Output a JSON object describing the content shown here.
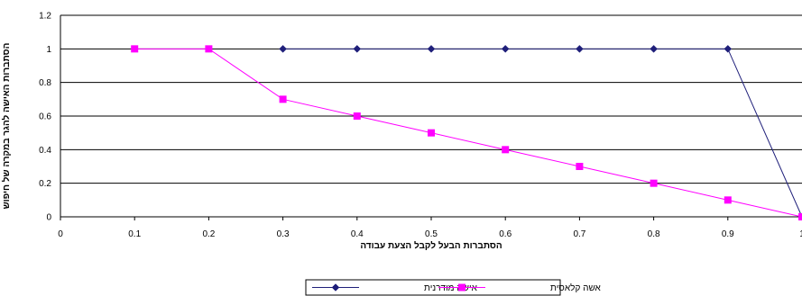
{
  "chart_data": {
    "type": "line",
    "title": "",
    "xlabel": "הסתברות הבעל לקבל הצעת עבודה",
    "ylabel": "הסתברות האישה להגר במקרה של חיפוש",
    "xlim": [
      0,
      1
    ],
    "ylim": [
      0,
      1.2
    ],
    "xticks": [
      "0",
      "0.1",
      "0.2",
      "0.3",
      "0.4",
      "0.5",
      "0.6",
      "0.7",
      "0.8",
      "0.9",
      "1"
    ],
    "yticks": [
      "0",
      "0.2",
      "0.4",
      "0.6",
      "0.8",
      "1",
      "1.2"
    ],
    "grid": "horizontal",
    "legend_position": "bottom",
    "series": [
      {
        "name": "אישה מודרנית",
        "color": "#1f1f7a",
        "marker": "diamond",
        "x": [
          0.3,
          0.4,
          0.5,
          0.6,
          0.7,
          0.8,
          0.9,
          1.0
        ],
        "y": [
          1,
          1,
          1,
          1,
          1,
          1,
          1,
          0
        ]
      },
      {
        "name": "אשה קלאסית",
        "color": "#ff00ff",
        "marker": "square",
        "x": [
          0.1,
          0.2,
          0.3,
          0.4,
          0.5,
          0.6,
          0.7,
          0.8,
          0.9,
          1.0
        ],
        "y": [
          1,
          1,
          0.7,
          0.6,
          0.5,
          0.4,
          0.3,
          0.2,
          0.1,
          0
        ]
      }
    ]
  }
}
